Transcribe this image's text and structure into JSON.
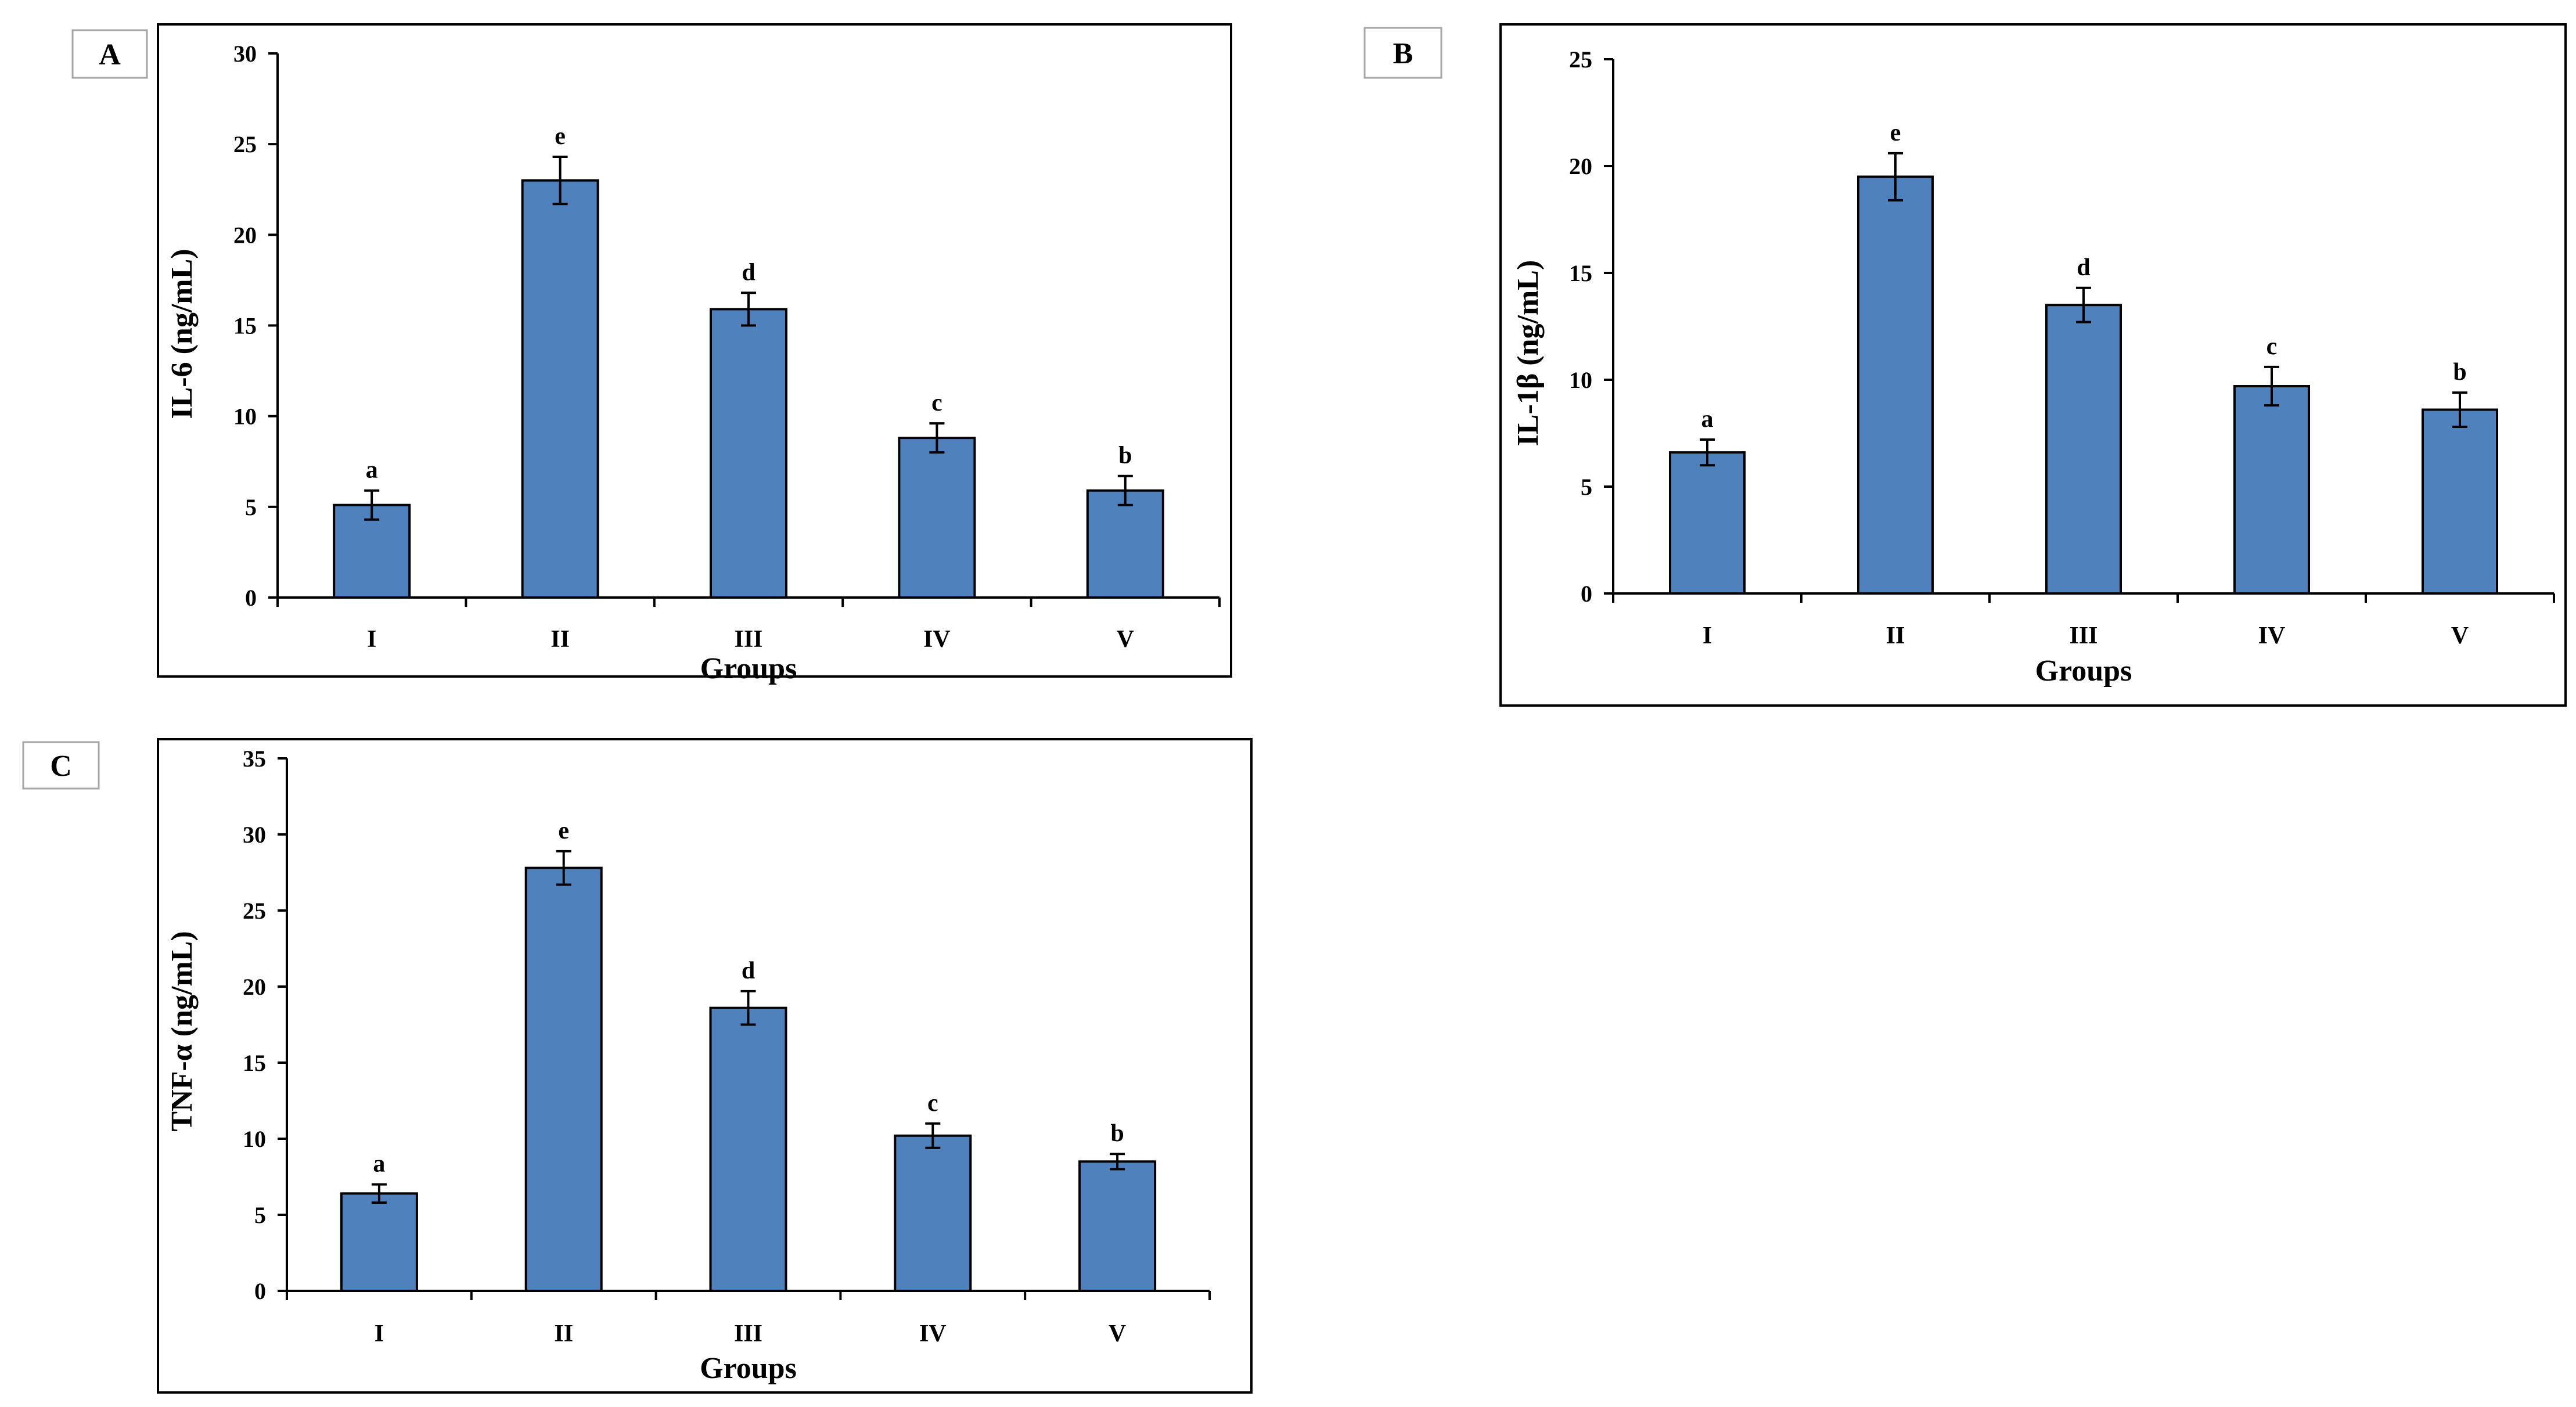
{
  "figure": {
    "colors": {
      "bar_fill": "#4f81bd",
      "axis": "#000000",
      "panel_box_border": "#a6a6a6"
    }
  },
  "chart_data": [
    {
      "panel_label": "A",
      "type": "bar",
      "xlabel": "Groups",
      "ylabel": "IL-6 (ng/mL)",
      "categories": [
        "I",
        "II",
        "III",
        "IV",
        "V"
      ],
      "values": [
        5.1,
        23.0,
        15.9,
        8.8,
        5.9
      ],
      "errors": [
        0.8,
        1.3,
        0.9,
        0.8,
        0.8
      ],
      "significance_letters": [
        "a",
        "e",
        "d",
        "c",
        "b"
      ],
      "ylim": [
        0,
        30
      ],
      "yticks": [
        0,
        5,
        10,
        15,
        20,
        25,
        30
      ],
      "grid": false
    },
    {
      "panel_label": "B",
      "type": "bar",
      "xlabel": "Groups",
      "ylabel": "IL-1β (ng/mL)",
      "categories": [
        "I",
        "II",
        "III",
        "IV",
        "V"
      ],
      "values": [
        6.6,
        19.5,
        13.5,
        9.7,
        8.6
      ],
      "errors": [
        0.6,
        1.1,
        0.8,
        0.9,
        0.8
      ],
      "significance_letters": [
        "a",
        "e",
        "d",
        "c",
        "b"
      ],
      "ylim": [
        0,
        25
      ],
      "yticks": [
        0,
        5,
        10,
        15,
        20,
        25
      ],
      "grid": false
    },
    {
      "panel_label": "C",
      "type": "bar",
      "xlabel": "Groups",
      "ylabel": "TNF-α (ng/mL)",
      "categories": [
        "I",
        "II",
        "III",
        "IV",
        "V"
      ],
      "values": [
        6.4,
        27.8,
        18.6,
        10.2,
        8.5
      ],
      "errors": [
        0.6,
        1.1,
        1.1,
        0.8,
        0.5
      ],
      "significance_letters": [
        "a",
        "e",
        "d",
        "c",
        "b"
      ],
      "ylim": [
        0,
        35
      ],
      "yticks": [
        0,
        5,
        10,
        15,
        20,
        25,
        30,
        35
      ],
      "grid": false
    }
  ]
}
